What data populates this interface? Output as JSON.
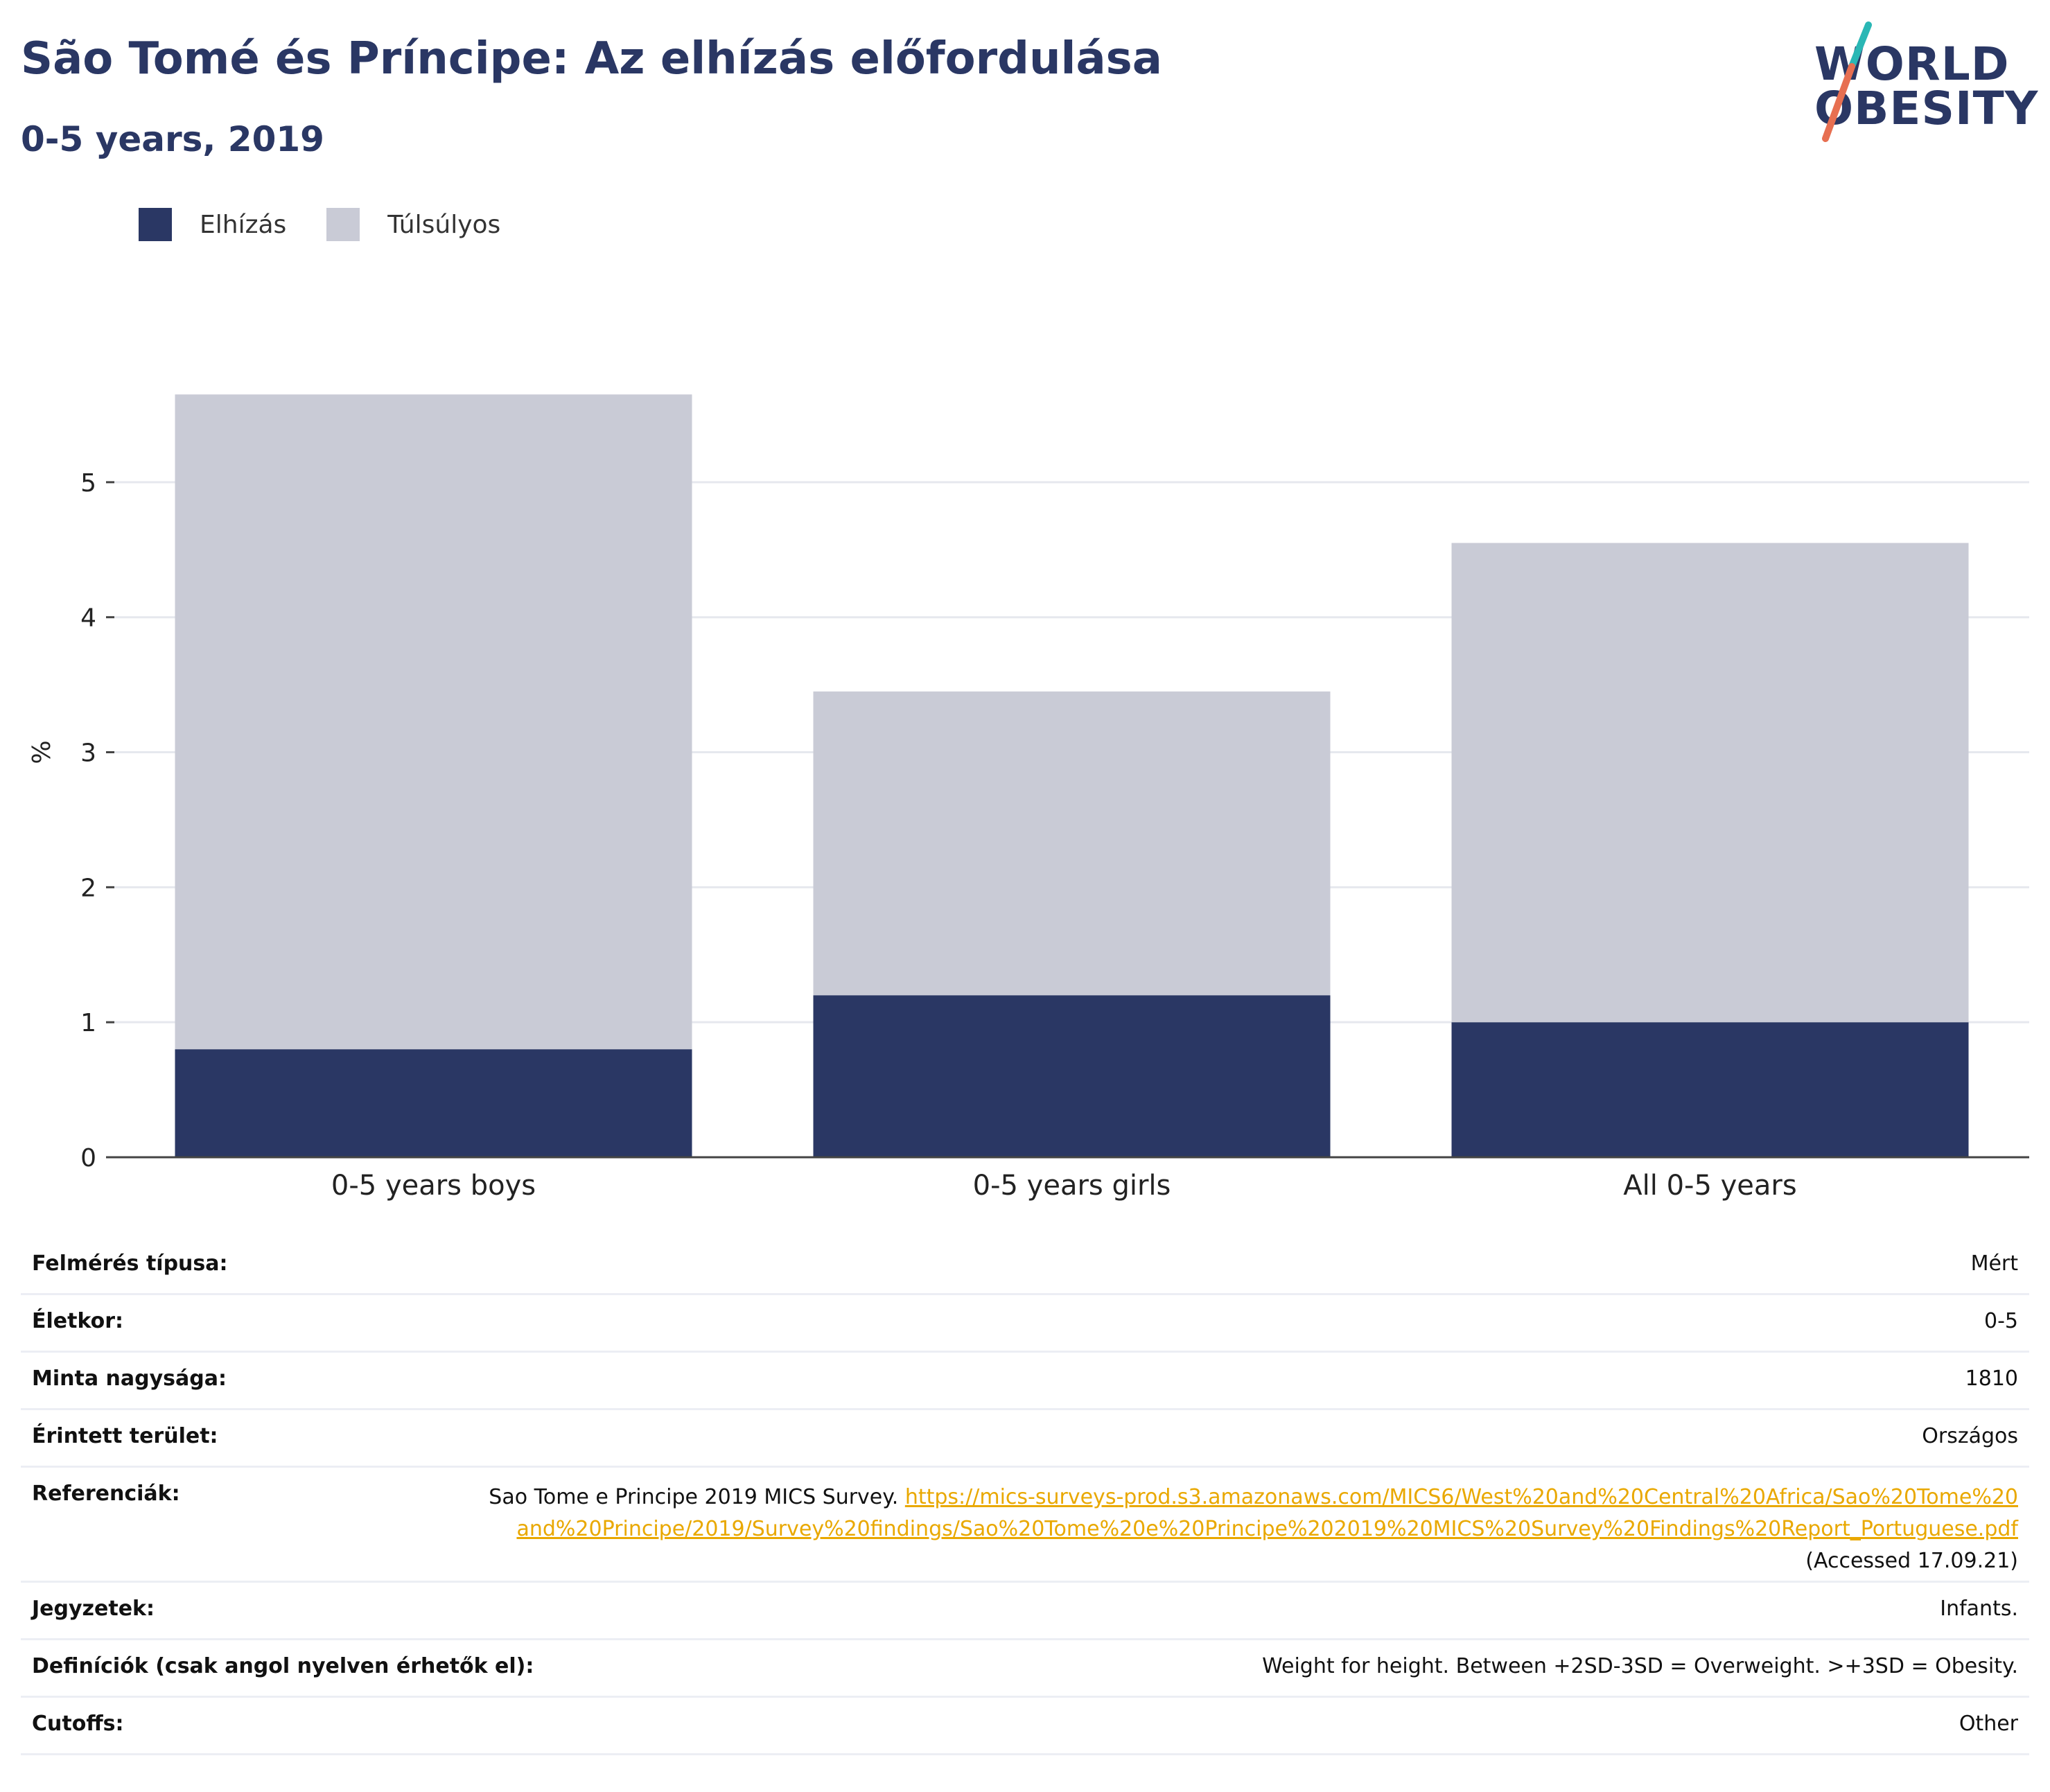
{
  "header": {
    "title": "São Tomé és Príncipe: Az elhízás előfordulása",
    "subtitle": "0-5 years, 2019",
    "logo_line1": "WORLD",
    "logo_line2": "OBESITY"
  },
  "colors": {
    "obesity": "#2a3764",
    "overweight": "#c9cbd6",
    "accent_teal": "#2ab7b5",
    "accent_orange": "#e76f51",
    "link": "#e9a800"
  },
  "chart_data": {
    "type": "bar",
    "stacked": true,
    "categories": [
      "0-5 years boys",
      "0-5 years girls",
      "All 0-5 years"
    ],
    "series": [
      {
        "name": "Elhízás",
        "values": [
          0.8,
          1.2,
          1.0
        ]
      },
      {
        "name": "Túlsúlyos",
        "values": [
          4.85,
          2.25,
          3.55
        ]
      }
    ],
    "ylabel": "%",
    "yticks": [
      0,
      1,
      2,
      3,
      4,
      5
    ],
    "ylim": [
      0,
      5.8
    ],
    "grid": true,
    "legend_position": "top-left"
  },
  "meta": {
    "rows": [
      {
        "label": "Felmérés típusa:",
        "value": "Mért"
      },
      {
        "label": "Életkor:",
        "value": "0-5"
      },
      {
        "label": "Minta nagysága:",
        "value": "1810"
      },
      {
        "label": "Érintett terület:",
        "value": "Országos"
      }
    ],
    "references": {
      "label": "Referenciák:",
      "text": "Sao Tome e Principe 2019 MICS Survey.",
      "link": "https://mics-surveys-prod.s3.amazonaws.com/MICS6/West%20and%20Central%20Africa/Sao%20Tome%20and%20Principe/2019/Survey%20findings/Sao%20Tome%20e%20Principe%202019%20MICS%20Survey%20Findings%20Report_Portuguese.pdf",
      "accessed": "(Accessed 17.09.21)"
    },
    "rows2": [
      {
        "label": "Jegyzetek:",
        "value": "Infants."
      },
      {
        "label": "Definíciók (csak angol nyelven érhetők el):",
        "value": "Weight for height. Between +2SD-3SD = Overweight. >+3SD = Obesity."
      },
      {
        "label": "Cutoffs:",
        "value": "Other"
      }
    ]
  }
}
